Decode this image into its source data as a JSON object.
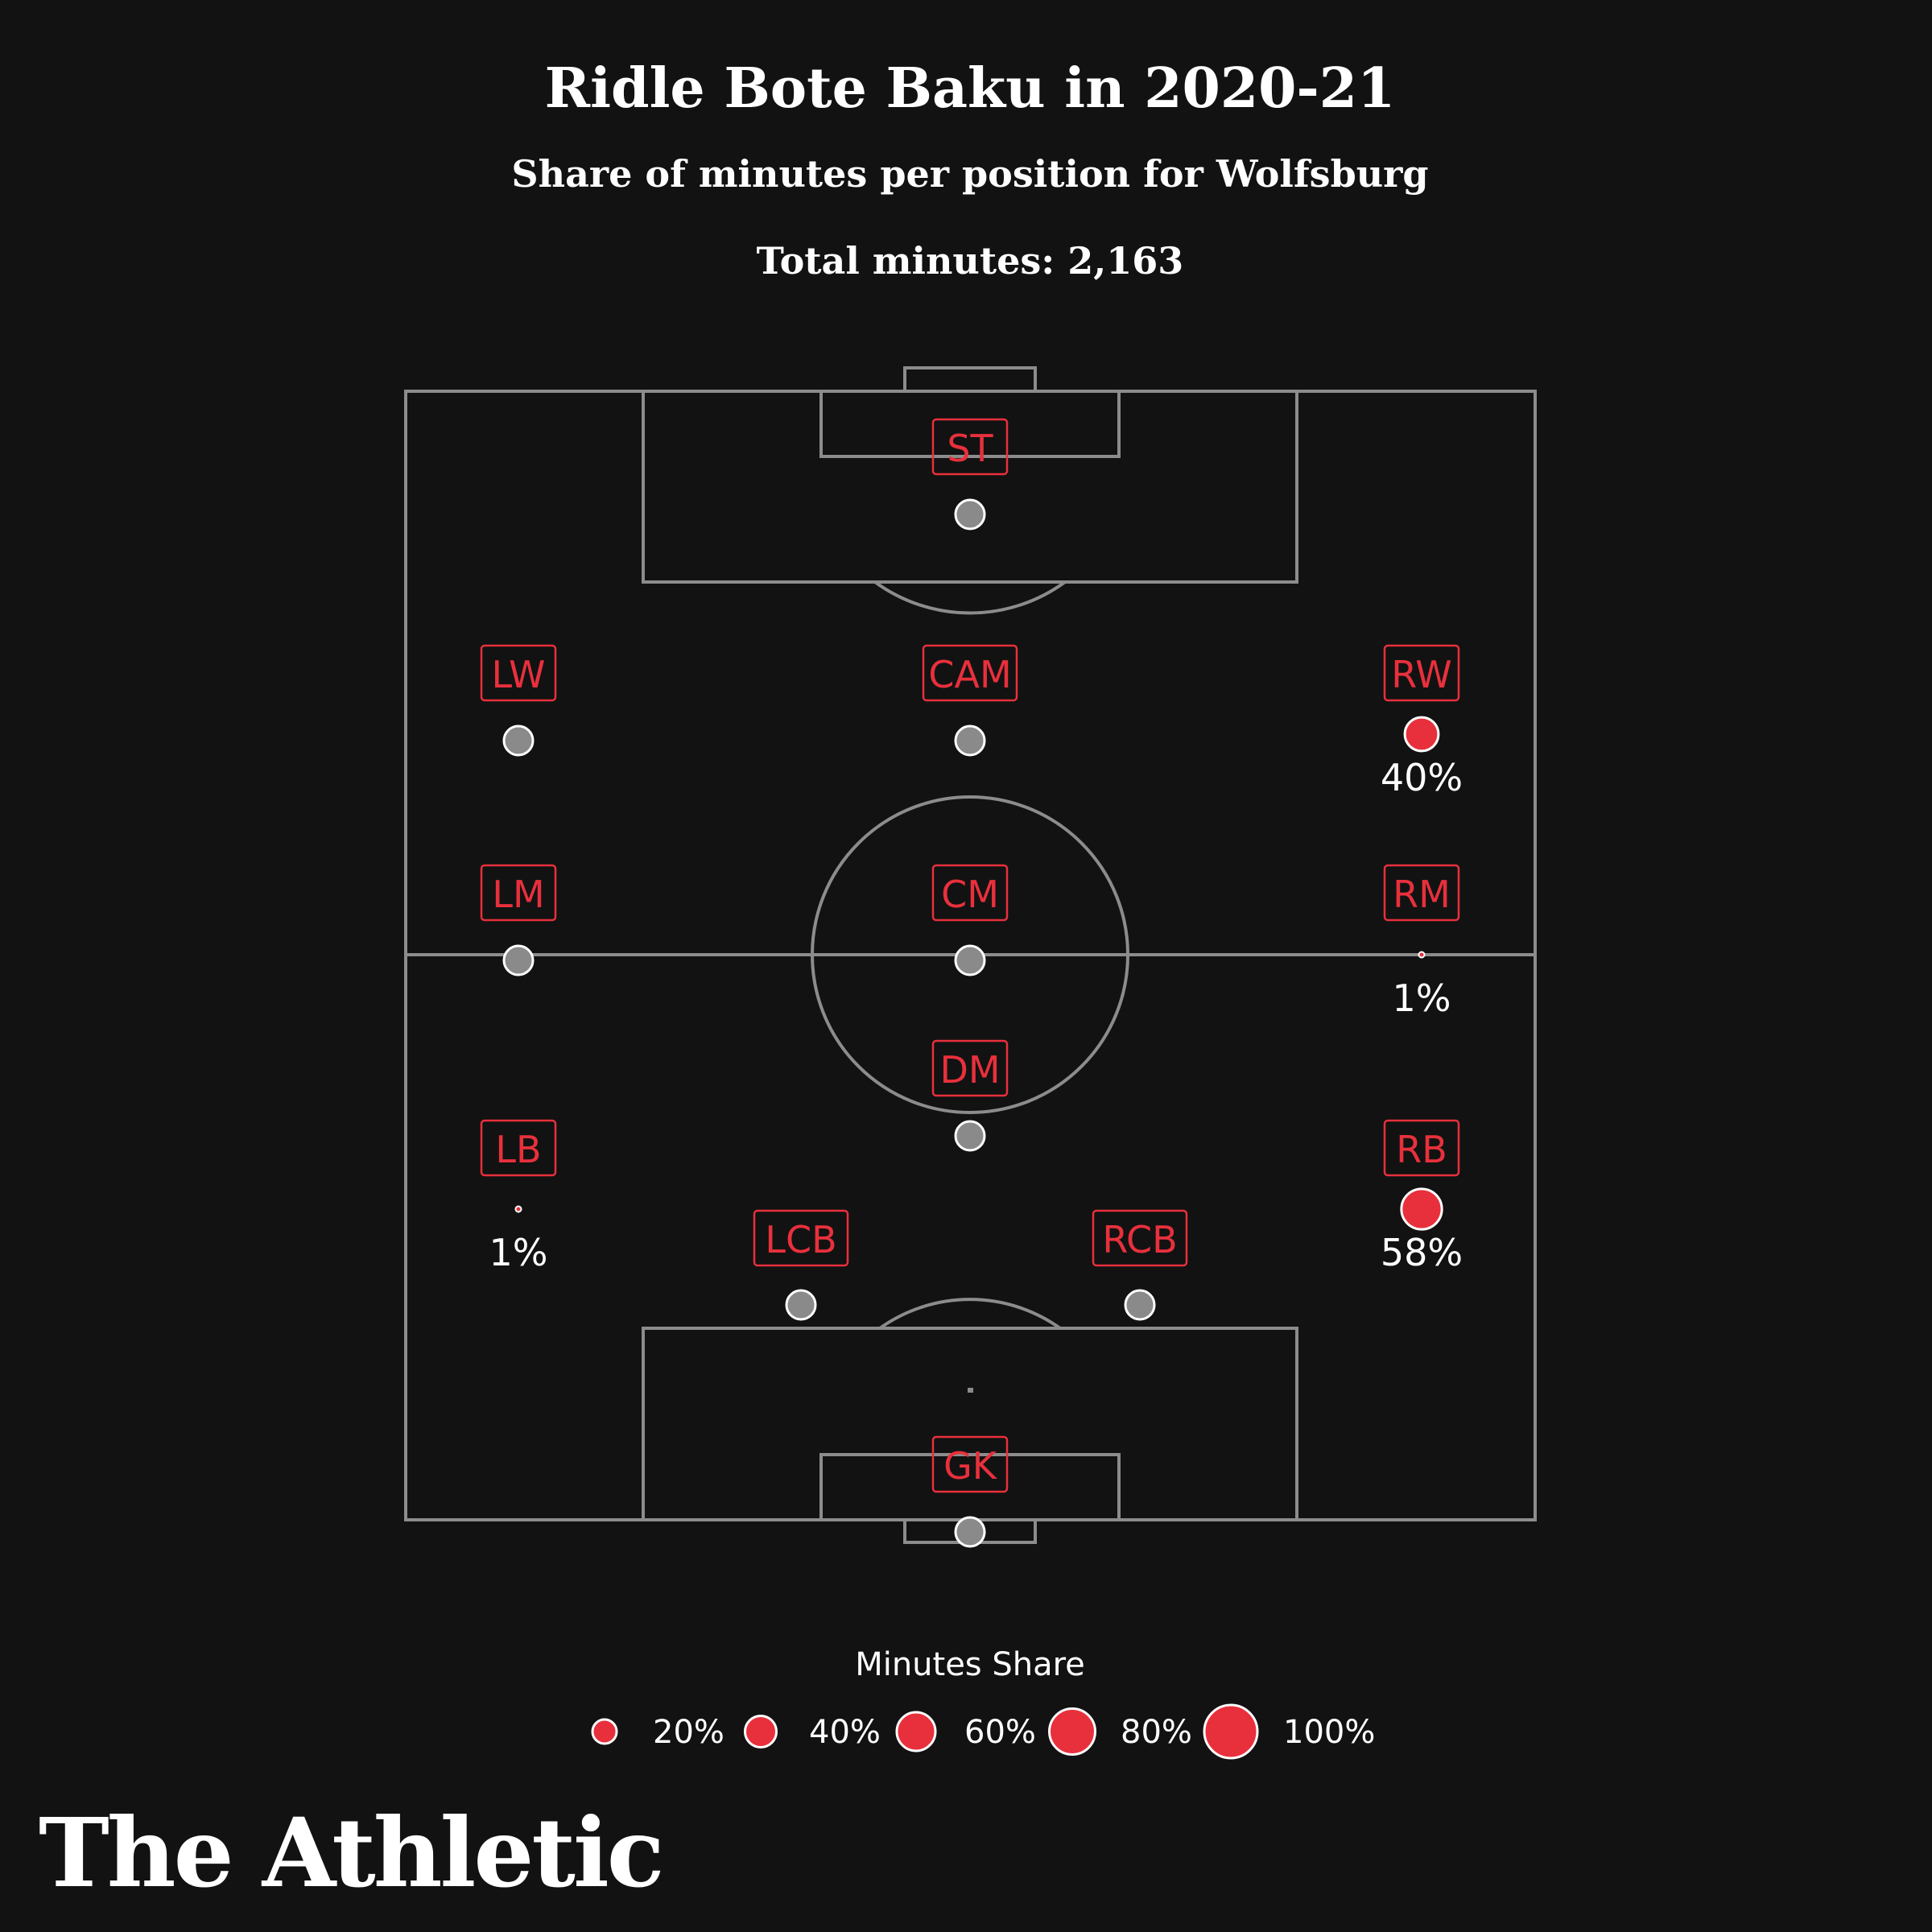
{
  "brand": "The Athletic",
  "chart_data": {
    "type": "scatter",
    "title": "Ridle Bote Baku in 2020-21",
    "subtitle": "Share of minutes per position for Wolfsburg",
    "total_minutes_text": "Total minutes: 2,163",
    "colors": {
      "background": "#121212",
      "accent": "#e8303c",
      "empty_marker": "#8a8a8a",
      "pitch_lines": "#8c8c8c",
      "text": "#ffffff"
    },
    "positions": [
      {
        "position": "ST",
        "share": 0,
        "label": ""
      },
      {
        "position": "LW",
        "share": 0,
        "label": ""
      },
      {
        "position": "CAM",
        "share": 0,
        "label": ""
      },
      {
        "position": "RW",
        "share": 40,
        "label": "40%"
      },
      {
        "position": "LM",
        "share": 0,
        "label": ""
      },
      {
        "position": "CM",
        "share": 0,
        "label": ""
      },
      {
        "position": "RM",
        "share": 1,
        "label": "1%"
      },
      {
        "position": "DM",
        "share": 0,
        "label": ""
      },
      {
        "position": "LB",
        "share": 1,
        "label": "1%"
      },
      {
        "position": "RB",
        "share": 58,
        "label": "58%"
      },
      {
        "position": "LCB",
        "share": 0,
        "label": ""
      },
      {
        "position": "RCB",
        "share": 0,
        "label": ""
      },
      {
        "position": "GK",
        "share": 0,
        "label": ""
      }
    ],
    "legend": {
      "title": "Minutes Share",
      "items": [
        {
          "value": 20,
          "label": "20%"
        },
        {
          "value": 40,
          "label": "40%"
        },
        {
          "value": 60,
          "label": "60%"
        },
        {
          "value": 80,
          "label": "80%"
        },
        {
          "value": 100,
          "label": "100%"
        }
      ]
    }
  }
}
